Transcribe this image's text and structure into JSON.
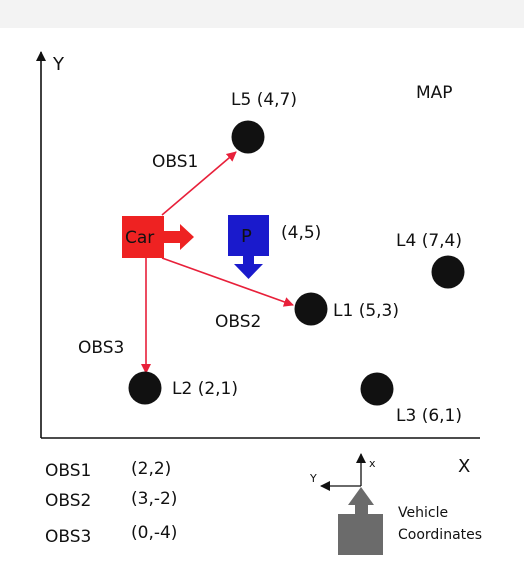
{
  "axes": {
    "x_label": "X",
    "y_label": "Y"
  },
  "map_label": "MAP",
  "car": {
    "label": "Car",
    "color": "#ee2222"
  },
  "p_marker": {
    "label": "P",
    "coord": "(4,5)",
    "color": "#1a1acc"
  },
  "landmarks": [
    {
      "name": "L1",
      "coord": "(5,3)"
    },
    {
      "name": "L2",
      "coord": "(2,1)"
    },
    {
      "name": "L3",
      "coord": "(6,1)"
    },
    {
      "name": "L4",
      "coord": "(7,4)"
    },
    {
      "name": "L5",
      "coord": "(4,7)"
    }
  ],
  "observations": [
    {
      "name": "OBS1",
      "value": "(2,2)"
    },
    {
      "name": "OBS2",
      "value": "(3,-2)"
    },
    {
      "name": "OBS3",
      "value": "(0,-4)"
    }
  ],
  "vehicle_frame": {
    "x_label": "x",
    "y_label": "Y",
    "caption_line1": "Vehicle",
    "caption_line2": "Coordinates"
  },
  "colors": {
    "observation_arrow": "#e8203a",
    "landmark": "#111111",
    "vehicle_icon": "#6b6b6b"
  }
}
